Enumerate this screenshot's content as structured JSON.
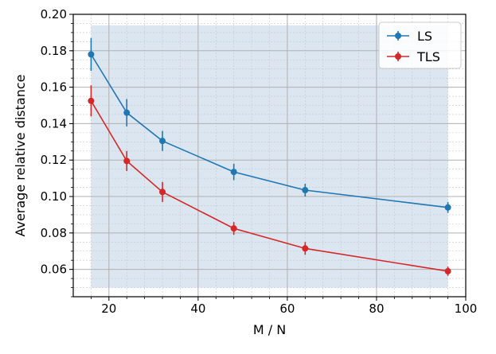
{
  "chart_data": {
    "type": "line",
    "title": "",
    "xlabel": "M / N",
    "ylabel": "Average relative distance",
    "xlim": [
      12,
      100
    ],
    "ylim": [
      0.045,
      0.2
    ],
    "xticks": [
      20,
      40,
      60,
      80,
      100
    ],
    "xtick_labels": [
      "20",
      "40",
      "60",
      "80",
      "100"
    ],
    "yticks": [
      0.06,
      0.08,
      0.1,
      0.12,
      0.14,
      0.16,
      0.18,
      0.2
    ],
    "ytick_labels": [
      "0.06",
      "0.08",
      "0.10",
      "0.12",
      "0.14",
      "0.16",
      "0.18",
      "0.20"
    ],
    "grid": true,
    "minor_grid": true,
    "shaded_region": {
      "x": [
        16,
        96
      ],
      "y": [
        0.05,
        0.194
      ],
      "color": "#dbe6f1"
    },
    "legend_position": "top-right",
    "x": [
      16,
      24,
      32,
      48,
      64,
      96
    ],
    "series": [
      {
        "name": "LS",
        "color": "#1f77b4",
        "values": [
          0.178,
          0.146,
          0.1305,
          0.1135,
          0.1035,
          0.094
        ],
        "errors": [
          0.009,
          0.0075,
          0.0055,
          0.0045,
          0.0035,
          0.003
        ]
      },
      {
        "name": "TLS",
        "color": "#d62728",
        "values": [
          0.1525,
          0.1195,
          0.1025,
          0.0825,
          0.0715,
          0.059
        ],
        "errors": [
          0.0085,
          0.0055,
          0.0055,
          0.0035,
          0.0035,
          0.0025
        ]
      }
    ]
  }
}
